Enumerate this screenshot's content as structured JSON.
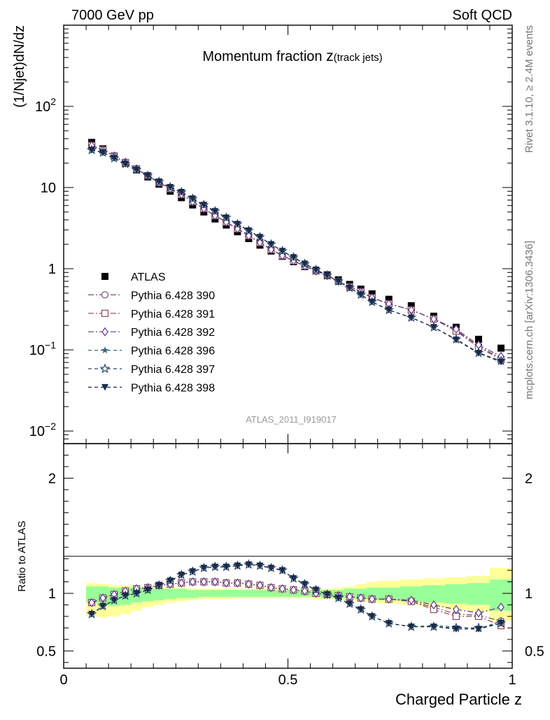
{
  "header": {
    "left": "7000 GeV pp",
    "right": "Soft QCD"
  },
  "side_labels": {
    "rivet": "Rivet 3.1.10, ≥ 2.4M events",
    "mcplots": "mcplots.cern.ch [arXiv:1306.3436]"
  },
  "watermark": "ATLAS_2011_I919017",
  "chart_data": [
    {
      "type": "scatter",
      "panel": "main",
      "title_main": "Momentum fraction ",
      "title_z": "z",
      "title_sub": "(track jets)",
      "ylabel": "(1/Njet)dN/dz",
      "xlabel": "Charged Particle z",
      "yscale": "log",
      "xlim": [
        0,
        1
      ],
      "ylim": [
        0.007,
        1000
      ],
      "yticks": [
        {
          "value": 0.01,
          "base": "10",
          "exp": "−2"
        },
        {
          "value": 0.1,
          "base": "10",
          "exp": "−1"
        },
        {
          "value": 1,
          "base": "1",
          "exp": ""
        },
        {
          "value": 10,
          "base": "10",
          "exp": ""
        },
        {
          "value": 100,
          "base": "10",
          "exp": "2"
        }
      ],
      "x": [
        0.0625,
        0.0875,
        0.1125,
        0.1375,
        0.1625,
        0.1875,
        0.2125,
        0.2375,
        0.2625,
        0.2875,
        0.3125,
        0.3375,
        0.3625,
        0.3875,
        0.4125,
        0.4375,
        0.4625,
        0.4875,
        0.5125,
        0.5375,
        0.5625,
        0.5875,
        0.6125,
        0.6375,
        0.6625,
        0.6875,
        0.725,
        0.775,
        0.825,
        0.875,
        0.925,
        0.975
      ],
      "series": [
        {
          "name": "ATLAS",
          "color": "#000000",
          "marker": "square-filled",
          "values": [
            36,
            30,
            24.5,
            20,
            16.5,
            13.5,
            11,
            9,
            7.5,
            6.1,
            5.0,
            4.1,
            3.45,
            2.85,
            2.35,
            1.95,
            1.65,
            1.42,
            1.22,
            1.06,
            0.94,
            0.84,
            0.73,
            0.64,
            0.56,
            0.49,
            0.42,
            0.35,
            0.26,
            0.19,
            0.135,
            0.105
          ]
        },
        {
          "name": "Pythia 6.428 390",
          "color": "#7a4f7d",
          "marker": "circle-open",
          "dash": "8,3,2,3",
          "values": [
            33,
            29,
            24.5,
            20.5,
            17,
            14,
            11.5,
            9.7,
            8.2,
            6.7,
            5.5,
            4.5,
            3.75,
            3.1,
            2.55,
            2.1,
            1.72,
            1.45,
            1.25,
            1.08,
            0.94,
            0.82,
            0.7,
            0.6,
            0.52,
            0.44,
            0.37,
            0.31,
            0.24,
            0.175,
            0.11,
            0.079
          ]
        },
        {
          "name": "Pythia 6.428 391",
          "color": "#8a4a5a",
          "marker": "square-open",
          "dash": "8,3,2,3",
          "values": [
            33,
            29,
            24.3,
            20.4,
            17,
            14,
            11.5,
            9.7,
            8.2,
            6.7,
            5.5,
            4.5,
            3.75,
            3.1,
            2.55,
            2.1,
            1.72,
            1.45,
            1.25,
            1.08,
            0.94,
            0.82,
            0.7,
            0.6,
            0.52,
            0.44,
            0.37,
            0.31,
            0.24,
            0.17,
            0.108,
            0.076
          ]
        },
        {
          "name": "Pythia 6.428 392",
          "color": "#5a3a8a",
          "marker": "diamond-open",
          "dash": "8,3,2,3",
          "values": [
            33,
            29,
            24.5,
            20.5,
            17,
            14,
            11.5,
            9.7,
            8.2,
            6.7,
            5.5,
            4.5,
            3.75,
            3.1,
            2.55,
            2.1,
            1.72,
            1.45,
            1.25,
            1.08,
            0.94,
            0.82,
            0.7,
            0.6,
            0.52,
            0.44,
            0.37,
            0.31,
            0.24,
            0.18,
            0.115,
            0.083
          ]
        },
        {
          "name": "Pythia 6.428 396",
          "color": "#3a6a7a",
          "marker": "star-filled",
          "dash": "5,4",
          "values": [
            29,
            27,
            23,
            19.5,
            16.5,
            14,
            11.8,
            10.1,
            8.8,
            7.3,
            6.1,
            5.1,
            4.25,
            3.55,
            2.95,
            2.45,
            2.0,
            1.65,
            1.38,
            1.15,
            0.97,
            0.83,
            0.7,
            0.58,
            0.48,
            0.39,
            0.31,
            0.25,
            0.19,
            0.135,
            0.093,
            0.072
          ]
        },
        {
          "name": "Pythia 6.428 397",
          "color": "#2a4a6a",
          "marker": "star-open",
          "dash": "5,4",
          "values": [
            29,
            27,
            23,
            19.5,
            16.5,
            14,
            11.8,
            10.1,
            8.8,
            7.3,
            6.1,
            5.1,
            4.25,
            3.55,
            2.95,
            2.45,
            2.0,
            1.65,
            1.38,
            1.15,
            0.97,
            0.83,
            0.7,
            0.58,
            0.48,
            0.39,
            0.31,
            0.25,
            0.19,
            0.135,
            0.092,
            0.073
          ]
        },
        {
          "name": "Pythia 6.428 398",
          "color": "#1a2a4a",
          "marker": "triangle-down-filled",
          "dash": "5,4",
          "values": [
            29,
            27,
            23,
            19.5,
            16.5,
            14,
            11.8,
            10.1,
            8.8,
            7.3,
            6.1,
            5.1,
            4.25,
            3.55,
            2.95,
            2.45,
            2.0,
            1.65,
            1.38,
            1.15,
            0.97,
            0.83,
            0.7,
            0.58,
            0.48,
            0.39,
            0.31,
            0.25,
            0.19,
            0.133,
            0.091,
            0.071
          ]
        }
      ]
    },
    {
      "type": "scatter",
      "panel": "ratio",
      "ylabel": "Ratio to ATLAS",
      "xlabel": "Charged Particle z",
      "xlim": [
        0,
        1
      ],
      "ylim": [
        0.35,
        2.3
      ],
      "xticks": [
        {
          "value": 0,
          "label": "0"
        },
        {
          "value": 0.5,
          "label": "0.5"
        },
        {
          "value": 1,
          "label": "1"
        }
      ],
      "yticks": [
        {
          "value": 0.5,
          "label": "0.5"
        },
        {
          "value": 1,
          "label": "1"
        },
        {
          "value": 2,
          "label": "2"
        }
      ],
      "band_edges": [
        0.05,
        0.075,
        0.1,
        0.125,
        0.15,
        0.175,
        0.2,
        0.225,
        0.25,
        0.275,
        0.3,
        0.325,
        0.35,
        0.375,
        0.4,
        0.425,
        0.45,
        0.475,
        0.5,
        0.525,
        0.55,
        0.575,
        0.6,
        0.625,
        0.65,
        0.675,
        0.7,
        0.75,
        0.8,
        0.85,
        0.9,
        0.95,
        1.0
      ],
      "band_inner_lo": [
        0.92,
        0.9,
        0.89,
        0.9,
        0.92,
        0.93,
        0.94,
        0.95,
        0.96,
        0.96,
        0.97,
        0.97,
        0.97,
        0.97,
        0.97,
        0.97,
        0.97,
        0.97,
        0.97,
        0.97,
        0.97,
        0.96,
        0.96,
        0.96,
        0.95,
        0.95,
        0.94,
        0.93,
        0.92,
        0.91,
        0.9,
        0.85
      ],
      "band_inner_hi": [
        1.06,
        1.06,
        1.05,
        1.05,
        1.05,
        1.04,
        1.04,
        1.04,
        1.04,
        1.03,
        1.03,
        1.03,
        1.03,
        1.03,
        1.03,
        1.03,
        1.03,
        1.03,
        1.03,
        1.03,
        1.03,
        1.03,
        1.03,
        1.04,
        1.04,
        1.05,
        1.05,
        1.06,
        1.07,
        1.08,
        1.09,
        1.12
      ],
      "band_outer_lo": [
        0.8,
        0.79,
        0.8,
        0.82,
        0.85,
        0.88,
        0.9,
        0.92,
        0.93,
        0.94,
        0.95,
        0.95,
        0.95,
        0.96,
        0.96,
        0.96,
        0.96,
        0.96,
        0.96,
        0.96,
        0.95,
        0.95,
        0.95,
        0.94,
        0.93,
        0.92,
        0.91,
        0.9,
        0.88,
        0.86,
        0.84,
        0.76
      ],
      "band_outer_hi": [
        1.09,
        1.08,
        1.07,
        1.07,
        1.06,
        1.06,
        1.05,
        1.05,
        1.05,
        1.04,
        1.04,
        1.04,
        1.04,
        1.04,
        1.04,
        1.04,
        1.04,
        1.04,
        1.04,
        1.04,
        1.04,
        1.04,
        1.05,
        1.06,
        1.08,
        1.1,
        1.11,
        1.12,
        1.13,
        1.14,
        1.15,
        1.22
      ],
      "x": [
        0.0625,
        0.0875,
        0.1125,
        0.1375,
        0.1625,
        0.1875,
        0.2125,
        0.2375,
        0.2625,
        0.2875,
        0.3125,
        0.3375,
        0.3625,
        0.3875,
        0.4125,
        0.4375,
        0.4625,
        0.4875,
        0.5125,
        0.5375,
        0.5625,
        0.5875,
        0.6125,
        0.6375,
        0.6625,
        0.6875,
        0.725,
        0.775,
        0.825,
        0.875,
        0.925,
        0.975
      ],
      "series": [
        {
          "name": "Pythia 6.428 390",
          "color": "#7a4f7d",
          "marker": "circle-open",
          "dash": "8,3,2,3",
          "values": [
            0.92,
            0.96,
            0.99,
            1.02,
            1.04,
            1.05,
            1.07,
            1.08,
            1.09,
            1.1,
            1.1,
            1.1,
            1.09,
            1.09,
            1.08,
            1.07,
            1.05,
            1.04,
            1.03,
            1.02,
            1.0,
            0.99,
            0.98,
            0.97,
            0.96,
            0.95,
            0.95,
            0.93,
            0.88,
            0.82,
            0.81,
            0.76
          ]
        },
        {
          "name": "Pythia 6.428 391",
          "color": "#8a4a5a",
          "marker": "square-open",
          "dash": "8,3,2,3",
          "values": [
            0.92,
            0.96,
            0.99,
            1.02,
            1.04,
            1.05,
            1.07,
            1.08,
            1.09,
            1.1,
            1.1,
            1.1,
            1.09,
            1.09,
            1.08,
            1.07,
            1.05,
            1.04,
            1.03,
            1.02,
            1.0,
            0.99,
            0.98,
            0.97,
            0.96,
            0.95,
            0.95,
            0.93,
            0.86,
            0.8,
            0.8,
            0.72
          ]
        },
        {
          "name": "Pythia 6.428 392",
          "color": "#5a3a8a",
          "marker": "diamond-open",
          "dash": "8,3,2,3",
          "values": [
            0.92,
            0.96,
            0.99,
            1.02,
            1.04,
            1.05,
            1.07,
            1.08,
            1.09,
            1.1,
            1.1,
            1.1,
            1.09,
            1.09,
            1.08,
            1.07,
            1.05,
            1.04,
            1.03,
            1.02,
            1.0,
            0.99,
            0.98,
            0.97,
            0.96,
            0.95,
            0.95,
            0.94,
            0.9,
            0.86,
            0.83,
            0.88
          ]
        },
        {
          "name": "Pythia 6.428 396",
          "color": "#3a6a7a",
          "marker": "star-filled",
          "dash": "5,4",
          "values": [
            0.82,
            0.89,
            0.94,
            0.98,
            1.0,
            1.03,
            1.07,
            1.11,
            1.16,
            1.19,
            1.22,
            1.23,
            1.23,
            1.24,
            1.25,
            1.24,
            1.22,
            1.2,
            1.13,
            1.08,
            1.03,
            0.99,
            0.96,
            0.91,
            0.86,
            0.8,
            0.74,
            0.71,
            0.72,
            0.71,
            0.69,
            0.76
          ]
        },
        {
          "name": "Pythia 6.428 397",
          "color": "#2a4a6a",
          "marker": "star-open",
          "dash": "5,4",
          "values": [
            0.82,
            0.89,
            0.94,
            0.98,
            1.0,
            1.03,
            1.07,
            1.11,
            1.16,
            1.19,
            1.22,
            1.23,
            1.23,
            1.24,
            1.25,
            1.24,
            1.22,
            1.2,
            1.13,
            1.08,
            1.03,
            0.99,
            0.96,
            0.91,
            0.86,
            0.8,
            0.74,
            0.71,
            0.71,
            0.7,
            0.7,
            0.74
          ]
        },
        {
          "name": "Pythia 6.428 398",
          "color": "#1a2a4a",
          "marker": "triangle-down-filled",
          "dash": "5,4",
          "values": [
            0.82,
            0.89,
            0.94,
            0.98,
            1.0,
            1.03,
            1.07,
            1.11,
            1.16,
            1.19,
            1.22,
            1.23,
            1.23,
            1.24,
            1.25,
            1.24,
            1.22,
            1.2,
            1.13,
            1.08,
            1.03,
            0.99,
            0.96,
            0.91,
            0.86,
            0.8,
            0.74,
            0.71,
            0.71,
            0.69,
            0.69,
            0.74
          ]
        }
      ]
    }
  ]
}
